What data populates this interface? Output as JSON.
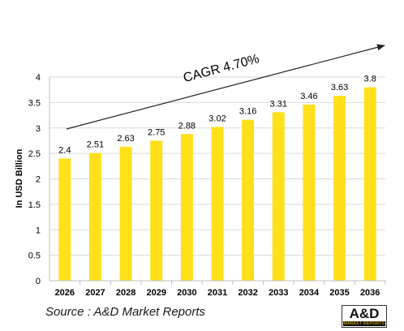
{
  "chart_data": {
    "type": "bar",
    "categories": [
      "2026",
      "2027",
      "2028",
      "2029",
      "2030",
      "2031",
      "2032",
      "2033",
      "2034",
      "2035",
      "2036"
    ],
    "values": [
      2.4,
      2.51,
      2.63,
      2.75,
      2.88,
      3.02,
      3.16,
      3.31,
      3.46,
      3.63,
      3.8
    ],
    "ylabel": "In USD Billion",
    "ylim": [
      0,
      4
    ],
    "yticks": [
      "0",
      "0.5",
      "1",
      "1.5",
      "2",
      "2.5",
      "3",
      "3.5",
      "4"
    ],
    "annotation": "CAGR 4.70%",
    "bar_color": "#FFE01A",
    "gridlines": true
  },
  "source": "Source : A&D Market Reports",
  "logo": {
    "main": "A&D",
    "sub": "MARKET REPORTS"
  }
}
